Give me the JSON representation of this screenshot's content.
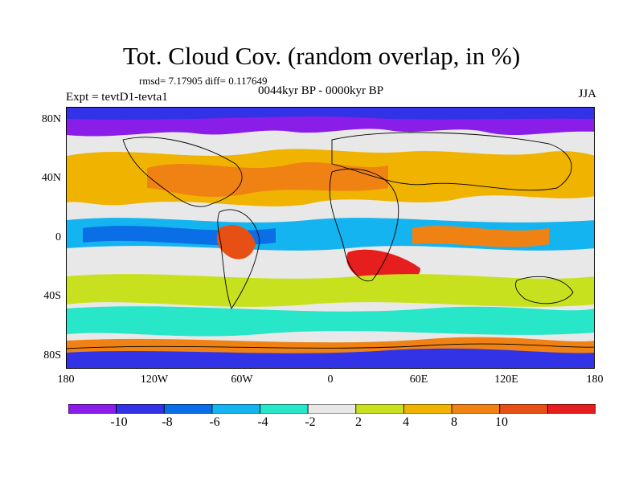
{
  "header": {
    "title": "Tot. Cloud Cov. (random overlap, in %)",
    "stats": "rmsd= 7.17905  diff= 0.117649",
    "period": "0044kyr BP - 0000kyr BP",
    "experiment": "Expt = tevtD1-tevta1",
    "season": "JJA"
  },
  "axes": {
    "lat_ticks": [
      "80N",
      "40N",
      "0",
      "40S",
      "80S"
    ],
    "lon_ticks": [
      "180",
      "120W",
      "60W",
      "0",
      "60E",
      "120E",
      "180"
    ]
  },
  "colorbar": {
    "colors": [
      "#8a1ee8",
      "#3232e6",
      "#0a6ee6",
      "#14b4f0",
      "#28e6c8",
      "#e8e8e8",
      "#c8e11e",
      "#f0b400",
      "#f08214",
      "#e65014",
      "#e61e1e"
    ],
    "labels": [
      "-10",
      "-8",
      "-6",
      "-4",
      "-2",
      "2",
      "4",
      "8",
      "10"
    ]
  },
  "map_description_note": ""
}
